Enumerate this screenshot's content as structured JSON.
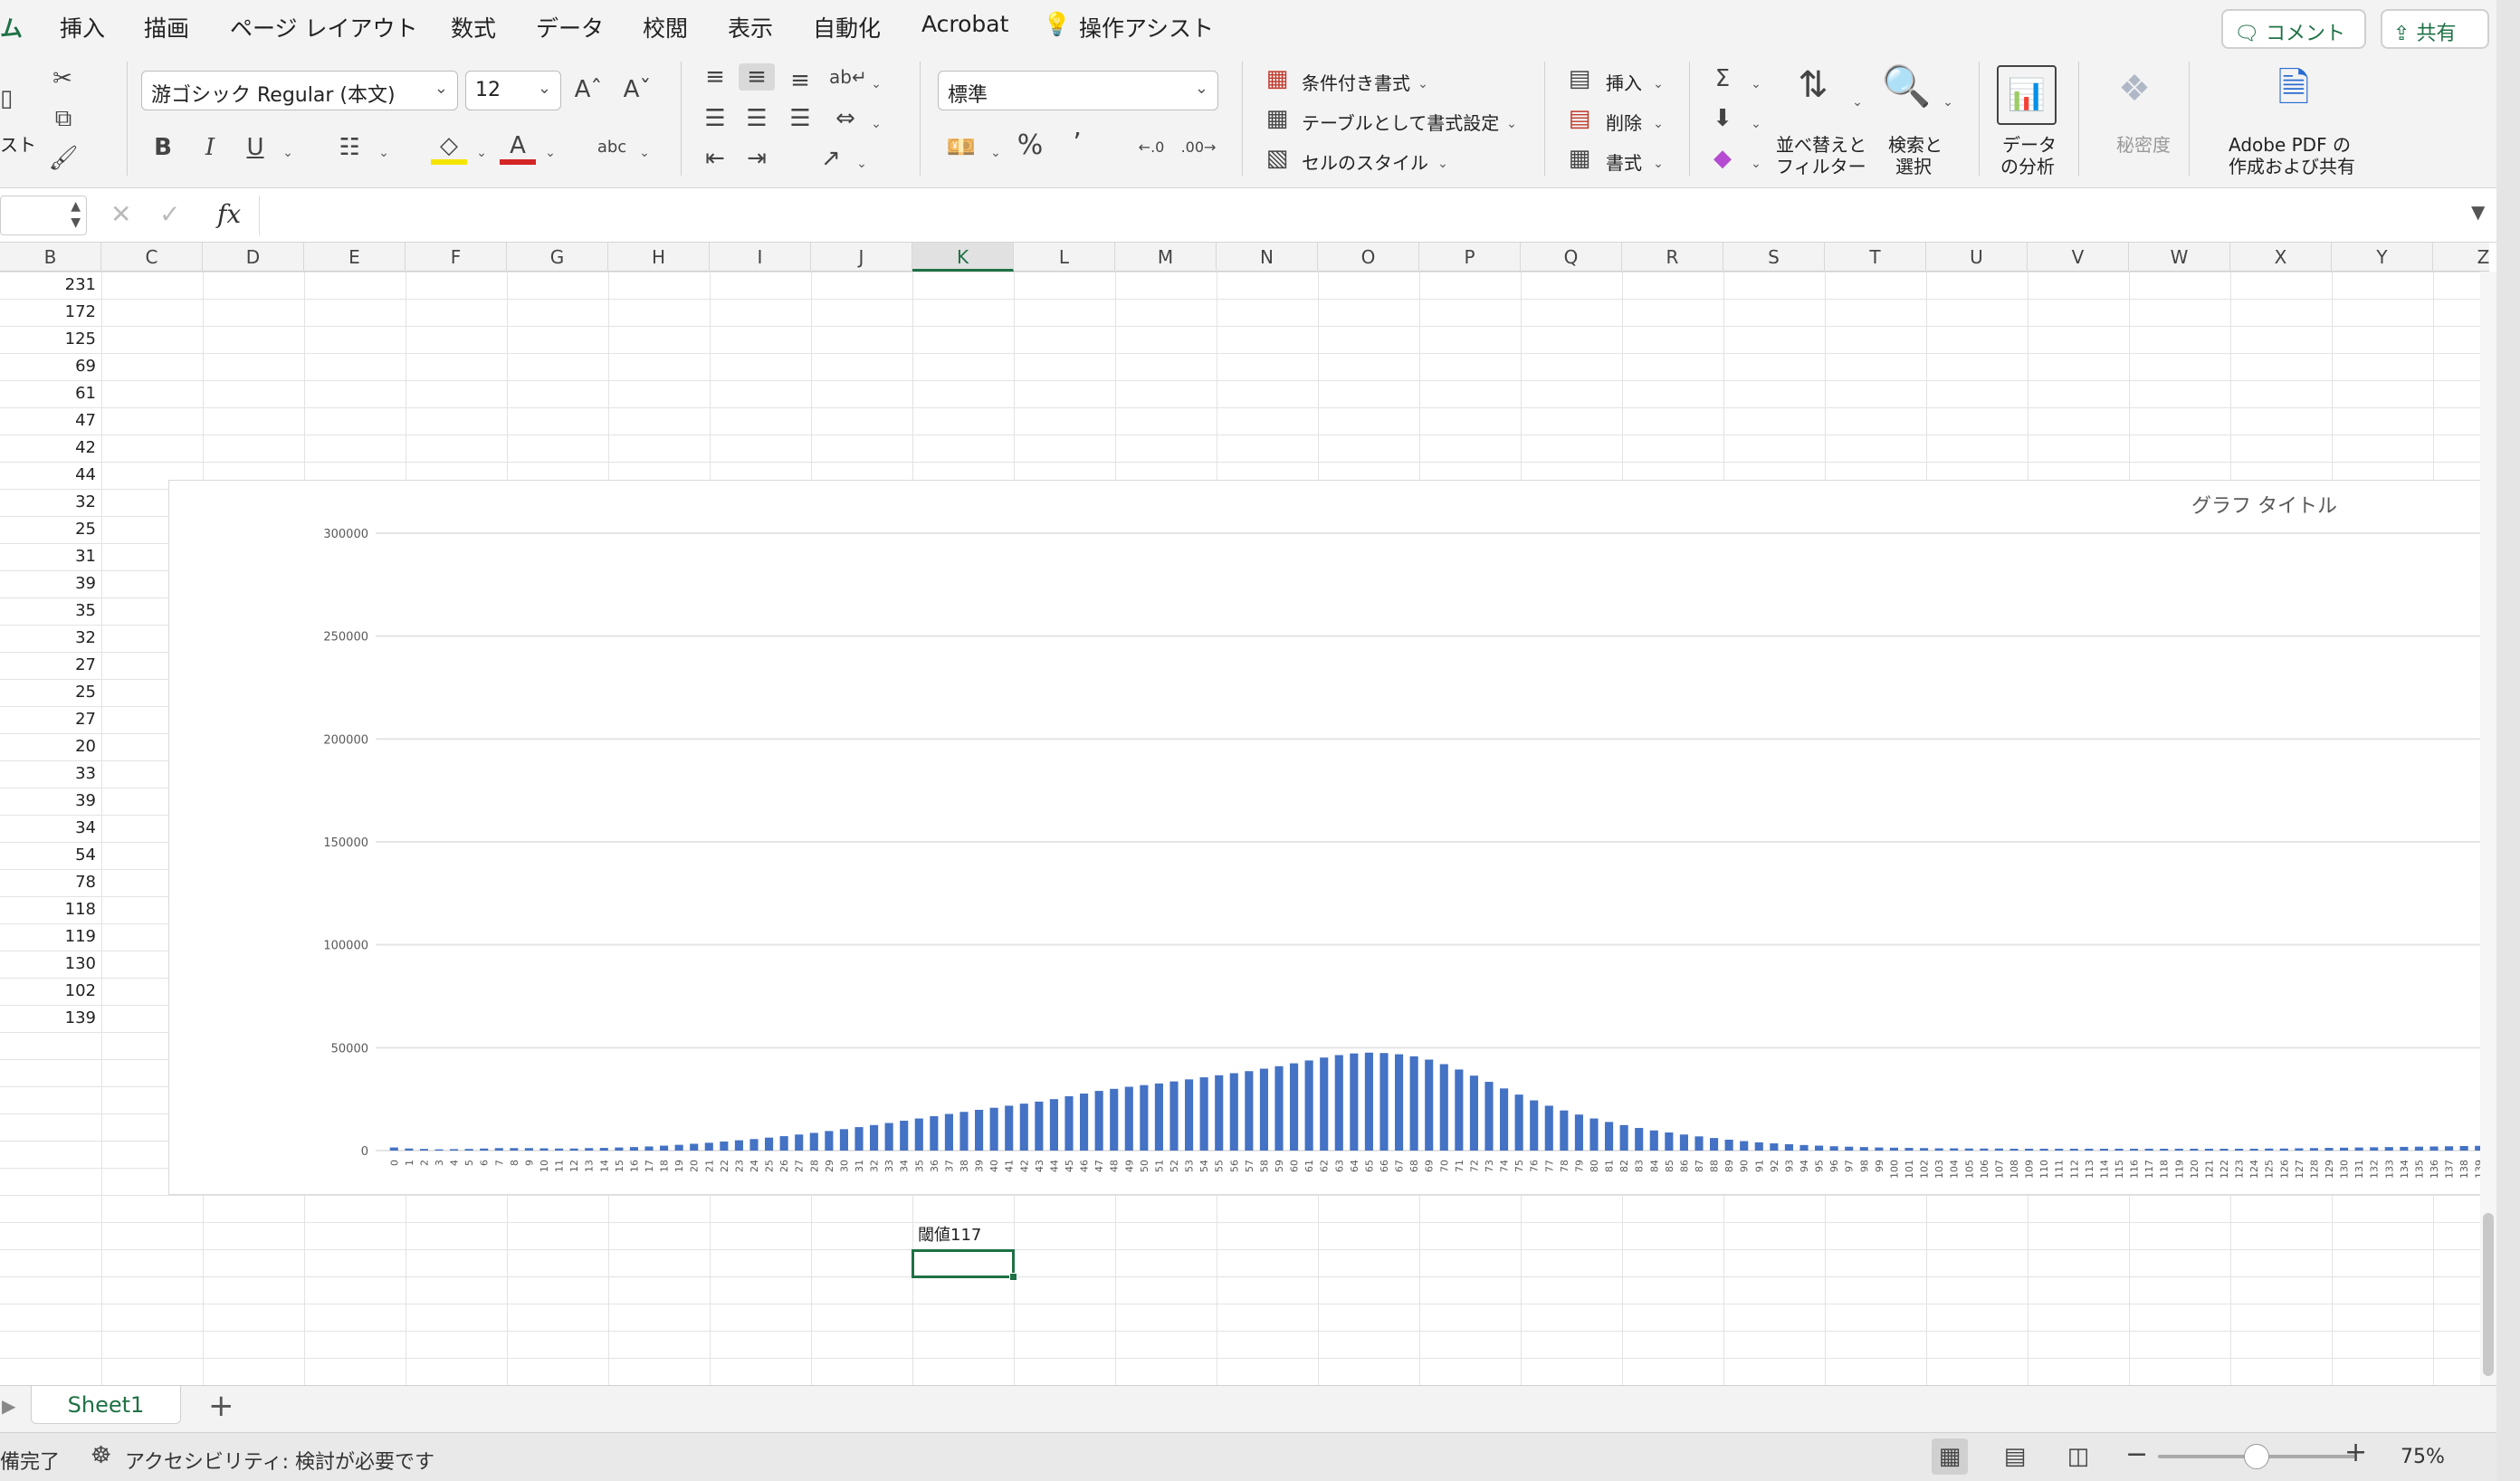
{
  "menu": {
    "tabs": [
      "ム",
      "挿入",
      "描画",
      "ページ レイアウト",
      "数式",
      "データ",
      "校閲",
      "表示",
      "自動化",
      "Acrobat",
      "操作アシスト"
    ],
    "comment_label": "コメント",
    "share_label": "共有"
  },
  "ribbon": {
    "paste_label": "スト",
    "font_name": "游ゴシック Regular (本文)",
    "font_size": "12",
    "number_format": "標準",
    "cond_format": "条件付き書式",
    "table_format": "テーブルとして書式設定",
    "cell_style": "セルのスタイル",
    "insert": "挿入",
    "delete": "削除",
    "format": "書式",
    "sort_filter_1": "並べ替えと",
    "sort_filter_2": "フィルター",
    "find_1": "検索と",
    "find_2": "選択",
    "analyze_1": "データ",
    "analyze_2": "の分析",
    "sensitivity": "秘密度",
    "adobe_1": "Adobe PDF の",
    "adobe_2": "作成および共有",
    "bold": "B",
    "italic": "I",
    "underline": "U"
  },
  "formula_bar": {
    "name_box": "",
    "fx": "fx",
    "content": ""
  },
  "grid": {
    "columns": [
      "B",
      "C",
      "D",
      "E",
      "F",
      "G",
      "H",
      "I",
      "J",
      "K",
      "L",
      "M",
      "N",
      "O",
      "P",
      "Q",
      "R",
      "S",
      "T",
      "U",
      "V",
      "W",
      "X",
      "Y",
      "Z"
    ],
    "selected_column": "K",
    "column_b_values": [
      "231",
      "172",
      "125",
      "69",
      "61",
      "47",
      "42",
      "44",
      "32",
      "25",
      "31",
      "39",
      "35",
      "32",
      "27",
      "25",
      "27",
      "20",
      "33",
      "39",
      "34",
      "54",
      "78",
      "118",
      "119",
      "130",
      "102",
      "139"
    ],
    "threshold_label": "閾値117"
  },
  "chart_data": {
    "type": "bar",
    "title": "グラフ タイトル",
    "ylim": [
      0,
      300000
    ],
    "yticks": [
      "0",
      "50000",
      "100000",
      "150000",
      "200000",
      "250000",
      "300000"
    ],
    "grid": true,
    "series_color": "#4472c4",
    "categories": [
      "0",
      "1",
      "2",
      "3",
      "4",
      "5",
      "6",
      "7",
      "8",
      "9",
      "10",
      "11",
      "12",
      "13",
      "14",
      "15",
      "16",
      "17",
      "18",
      "19",
      "20",
      "21",
      "22",
      "23",
      "24",
      "25",
      "26",
      "27",
      "28",
      "29",
      "30",
      "31",
      "32",
      "33",
      "34",
      "35",
      "36",
      "37",
      "38",
      "39",
      "40",
      "41",
      "42",
      "43",
      "44",
      "45",
      "46",
      "47",
      "48",
      "49",
      "50",
      "51",
      "52",
      "53",
      "54",
      "55",
      "56",
      "57",
      "58",
      "59",
      "60",
      "61",
      "62",
      "63",
      "64",
      "65",
      "66",
      "67",
      "68",
      "69",
      "70",
      "71",
      "72",
      "73",
      "74",
      "75",
      "76",
      "77",
      "78",
      "79",
      "80",
      "81",
      "82",
      "83",
      "84",
      "85",
      "86",
      "87",
      "88",
      "89",
      "90",
      "91",
      "92",
      "93",
      "94",
      "95",
      "96",
      "97",
      "98",
      "99",
      "100",
      "101",
      "102",
      "103",
      "104",
      "105",
      "106",
      "107",
      "108",
      "109",
      "110",
      "111",
      "112",
      "113",
      "114",
      "115",
      "116",
      "117",
      "118",
      "119",
      "120",
      "121",
      "122",
      "123",
      "124",
      "125",
      "126",
      "127",
      "128",
      "129",
      "130",
      "131",
      "132",
      "133",
      "134",
      "135",
      "136",
      "137",
      "138",
      "139"
    ],
    "values": [
      1500,
      1000,
      800,
      600,
      700,
      800,
      1000,
      1200,
      1200,
      1200,
      1100,
      1000,
      1000,
      1200,
      1300,
      1500,
      1700,
      2000,
      2400,
      2800,
      3300,
      3800,
      4400,
      5000,
      5600,
      6300,
      7000,
      7800,
      8600,
      9500,
      10400,
      11400,
      12400,
      13400,
      14500,
      15600,
      16700,
      17800,
      18800,
      19800,
      20800,
      21800,
      22800,
      23800,
      25000,
      26400,
      27700,
      29000,
      30000,
      31000,
      31800,
      32600,
      33600,
      34600,
      35600,
      36600,
      37600,
      38600,
      39800,
      41000,
      42400,
      43800,
      45200,
      46400,
      47200,
      47600,
      47400,
      46800,
      45800,
      44200,
      42000,
      39400,
      36400,
      33400,
      30200,
      27200,
      24400,
      21800,
      19500,
      17500,
      15600,
      13900,
      12400,
      11000,
      9800,
      8800,
      7800,
      6900,
      6100,
      5300,
      4600,
      4000,
      3500,
      3100,
      2700,
      2400,
      2100,
      1900,
      1700,
      1500,
      1400,
      1300,
      1200,
      1100,
      1100,
      1000,
      1000,
      1000,
      900,
      900,
      900,
      900,
      900,
      900,
      900,
      900,
      900,
      900,
      900,
      900,
      900,
      900,
      900,
      900,
      900,
      1000,
      1000,
      1100,
      1200,
      1300,
      1400,
      1500,
      1600,
      1700,
      1800,
      1900,
      2000,
      2100,
      2200,
      2300
    ]
  },
  "sheet_tabs": {
    "active": "Sheet1",
    "add": "+"
  },
  "status": {
    "ready": "備完了",
    "accessibility": "アクセシビリティ: 検討が必要です",
    "zoom": "75%",
    "zoom_fraction": 0.5
  }
}
